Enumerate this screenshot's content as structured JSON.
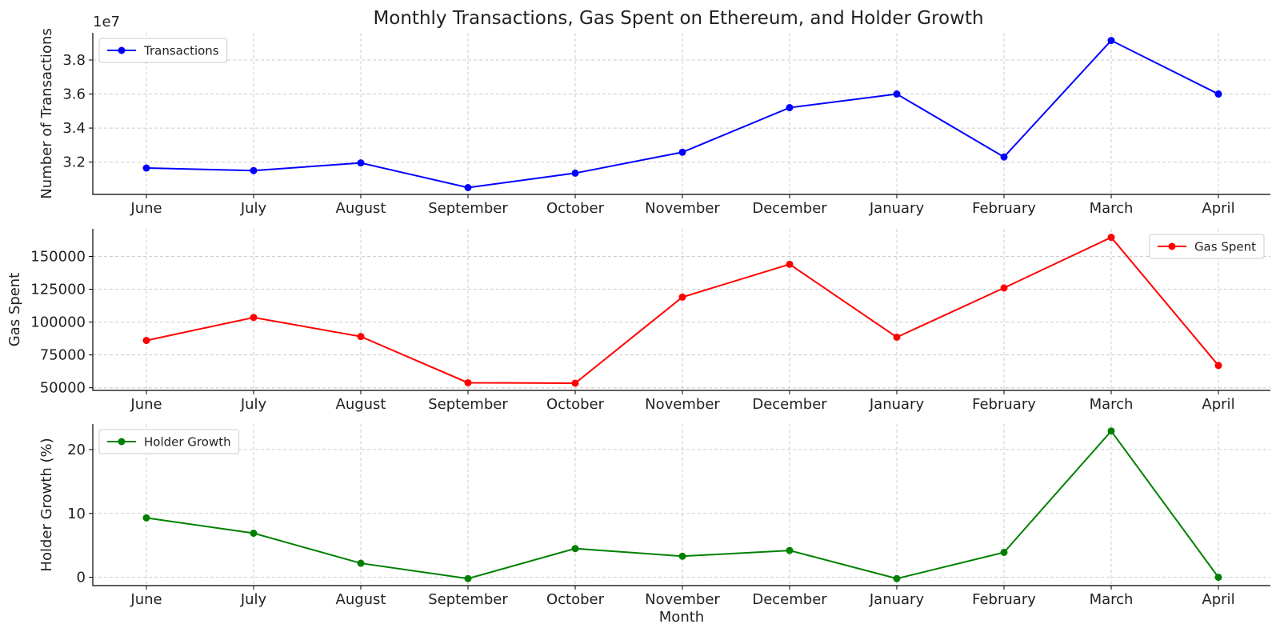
{
  "figure": {
    "title": "Monthly Transactions, Gas Spent on Ethereum, and Holder Growth",
    "xlabel": "Month"
  },
  "chart_data": [
    {
      "type": "line",
      "title": "",
      "xlabel": "",
      "ylabel": "Number of Transactions",
      "categories": [
        "June",
        "July",
        "August",
        "September",
        "October",
        "November",
        "December",
        "January",
        "February",
        "March",
        "April"
      ],
      "series": [
        {
          "name": "Transactions",
          "color": "#0000ff",
          "values": [
            31650000,
            31500000,
            31950000,
            30500000,
            31350000,
            32580000,
            35200000,
            36000000,
            32300000,
            39150000,
            36000000
          ]
        }
      ],
      "ylim": [
        30100000,
        39600000
      ],
      "yticks": [
        32000000,
        34000000,
        36000000,
        38000000
      ],
      "ytick_labels": [
        "3.2",
        "3.4",
        "3.6",
        "3.8"
      ],
      "y_offset_label": "1e7",
      "legend_position": "upper left",
      "grid": true
    },
    {
      "type": "line",
      "title": "",
      "xlabel": "",
      "ylabel": "Gas Spent",
      "categories": [
        "June",
        "July",
        "August",
        "September",
        "October",
        "November",
        "December",
        "January",
        "February",
        "March",
        "April"
      ],
      "series": [
        {
          "name": "Gas Spent",
          "color": "#ff0000",
          "values": [
            86000,
            103500,
            89000,
            53800,
            53500,
            119000,
            144000,
            88500,
            126000,
            164500,
            67000
          ]
        }
      ],
      "ylim": [
        48000,
        171000
      ],
      "yticks": [
        50000,
        75000,
        100000,
        125000,
        150000
      ],
      "ytick_labels": [
        "50000",
        "75000",
        "100000",
        "125000",
        "150000"
      ],
      "legend_position": "upper right",
      "grid": true
    },
    {
      "type": "line",
      "title": "",
      "xlabel": "Month",
      "ylabel": "Holder Growth (%)",
      "categories": [
        "June",
        "July",
        "August",
        "September",
        "October",
        "November",
        "December",
        "January",
        "February",
        "March",
        "April"
      ],
      "series": [
        {
          "name": "Holder Growth",
          "color": "#008000",
          "values": [
            9.3,
            6.9,
            2.2,
            -0.2,
            4.5,
            3.3,
            4.2,
            -0.2,
            3.9,
            22.9,
            0.0
          ]
        }
      ],
      "ylim": [
        -1.3,
        24.0
      ],
      "yticks": [
        0,
        10,
        20
      ],
      "ytick_labels": [
        "0",
        "10",
        "20"
      ],
      "legend_position": "upper left",
      "grid": true
    }
  ]
}
